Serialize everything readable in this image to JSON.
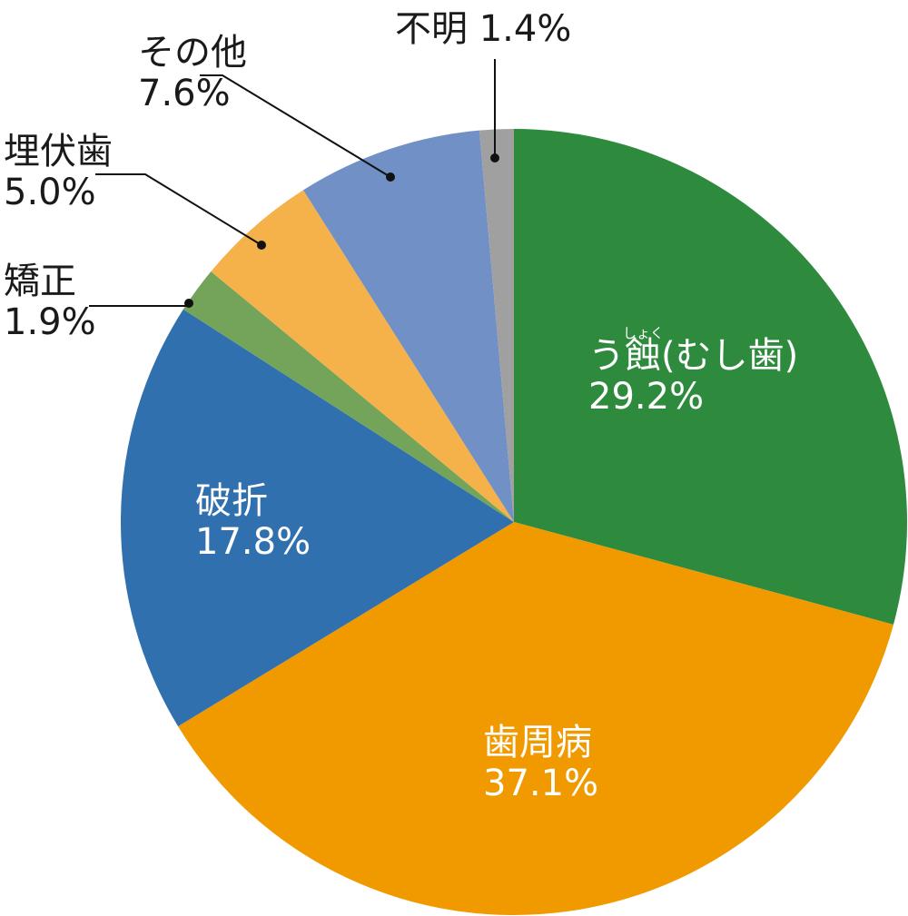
{
  "chart_data": {
    "type": "pie",
    "title": "",
    "start_angle_deg": 0,
    "direction": "clockwise",
    "center": [
      566,
      575
    ],
    "radius": 433,
    "slices": [
      {
        "label": "う蝕(むし歯)",
        "ruby": "しょく",
        "value": 29.2,
        "display": "29.2%",
        "color": "#2e8b3e",
        "label_pos": "inside"
      },
      {
        "label": "歯周病",
        "value": 37.1,
        "display": "37.1%",
        "color": "#f09a00",
        "label_pos": "inside"
      },
      {
        "label": "破折",
        "value": 17.8,
        "display": "17.8%",
        "color": "#3070ae",
        "label_pos": "inside"
      },
      {
        "label": "矯正",
        "value": 1.9,
        "display": "1.9%",
        "color": "#74a45a",
        "label_pos": "outside"
      },
      {
        "label": "埋伏歯",
        "value": 5.0,
        "display": "5.0%",
        "color": "#f5b24a",
        "label_pos": "outside"
      },
      {
        "label": "その他",
        "value": 7.6,
        "display": "7.6%",
        "color": "#7090c6",
        "label_pos": "outside"
      },
      {
        "label": "不明",
        "value": 1.4,
        "display": "1.4%",
        "color": "#a0a0a0",
        "label_pos": "outside"
      }
    ]
  },
  "labels": {
    "caries": {
      "name": "う蝕(むし歯)",
      "ruby": "しょく",
      "pct": "29.2%"
    },
    "perio": {
      "name": "歯周病",
      "pct": "37.1%"
    },
    "fracture": {
      "name": "破折",
      "pct": "17.8%"
    },
    "ortho": {
      "name": "矯正",
      "pct": "1.9%"
    },
    "impacted": {
      "name": "埋伏歯",
      "pct": "5.0%"
    },
    "other": {
      "name": "その他",
      "pct": "7.6%"
    },
    "unknown": {
      "name": "不明 1.4%"
    }
  }
}
